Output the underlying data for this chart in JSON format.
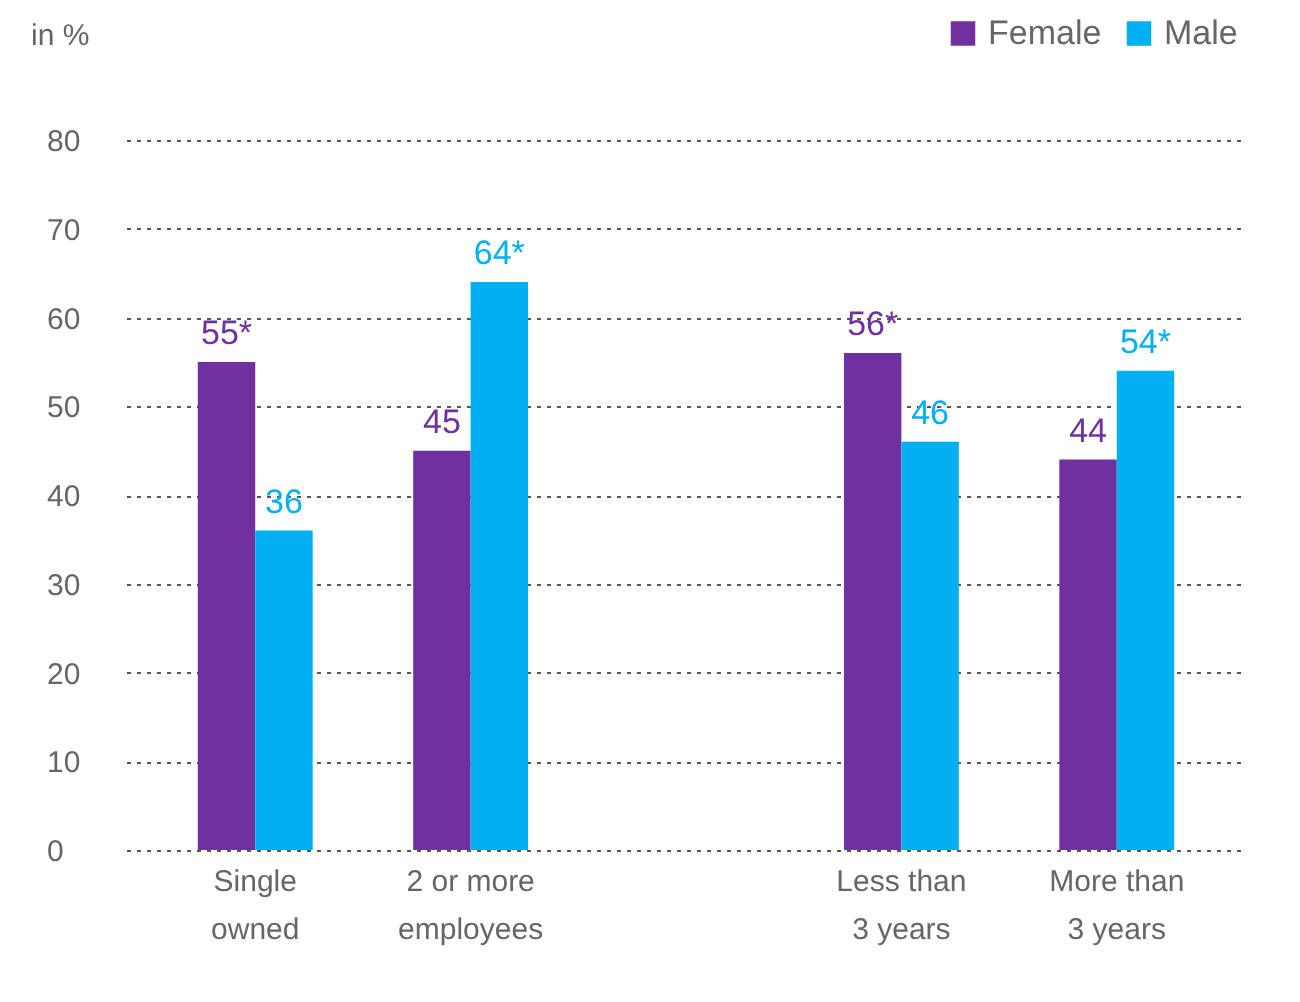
{
  "chart_data": {
    "type": "bar",
    "ylabel": "in %",
    "categories": [
      "Single\nowned",
      "2 or more\nemployees",
      null,
      "Less than\n3 years",
      "More than\n3 years"
    ],
    "series": [
      {
        "name": "Female",
        "color": "#7030a0",
        "values": [
          55,
          45,
          null,
          56,
          44
        ],
        "value_labels": [
          "55*",
          "45",
          null,
          "56*",
          "44"
        ]
      },
      {
        "name": "Male",
        "color": "#00b0f0",
        "values": [
          36,
          64,
          null,
          46,
          54
        ],
        "value_labels": [
          "36",
          "64*",
          null,
          "46",
          "54*"
        ]
      }
    ],
    "ylim": [
      0,
      80
    ],
    "yticks": [
      0,
      10,
      20,
      30,
      40,
      50,
      60,
      70,
      80
    ],
    "grid": "y",
    "legend": "top right"
  }
}
